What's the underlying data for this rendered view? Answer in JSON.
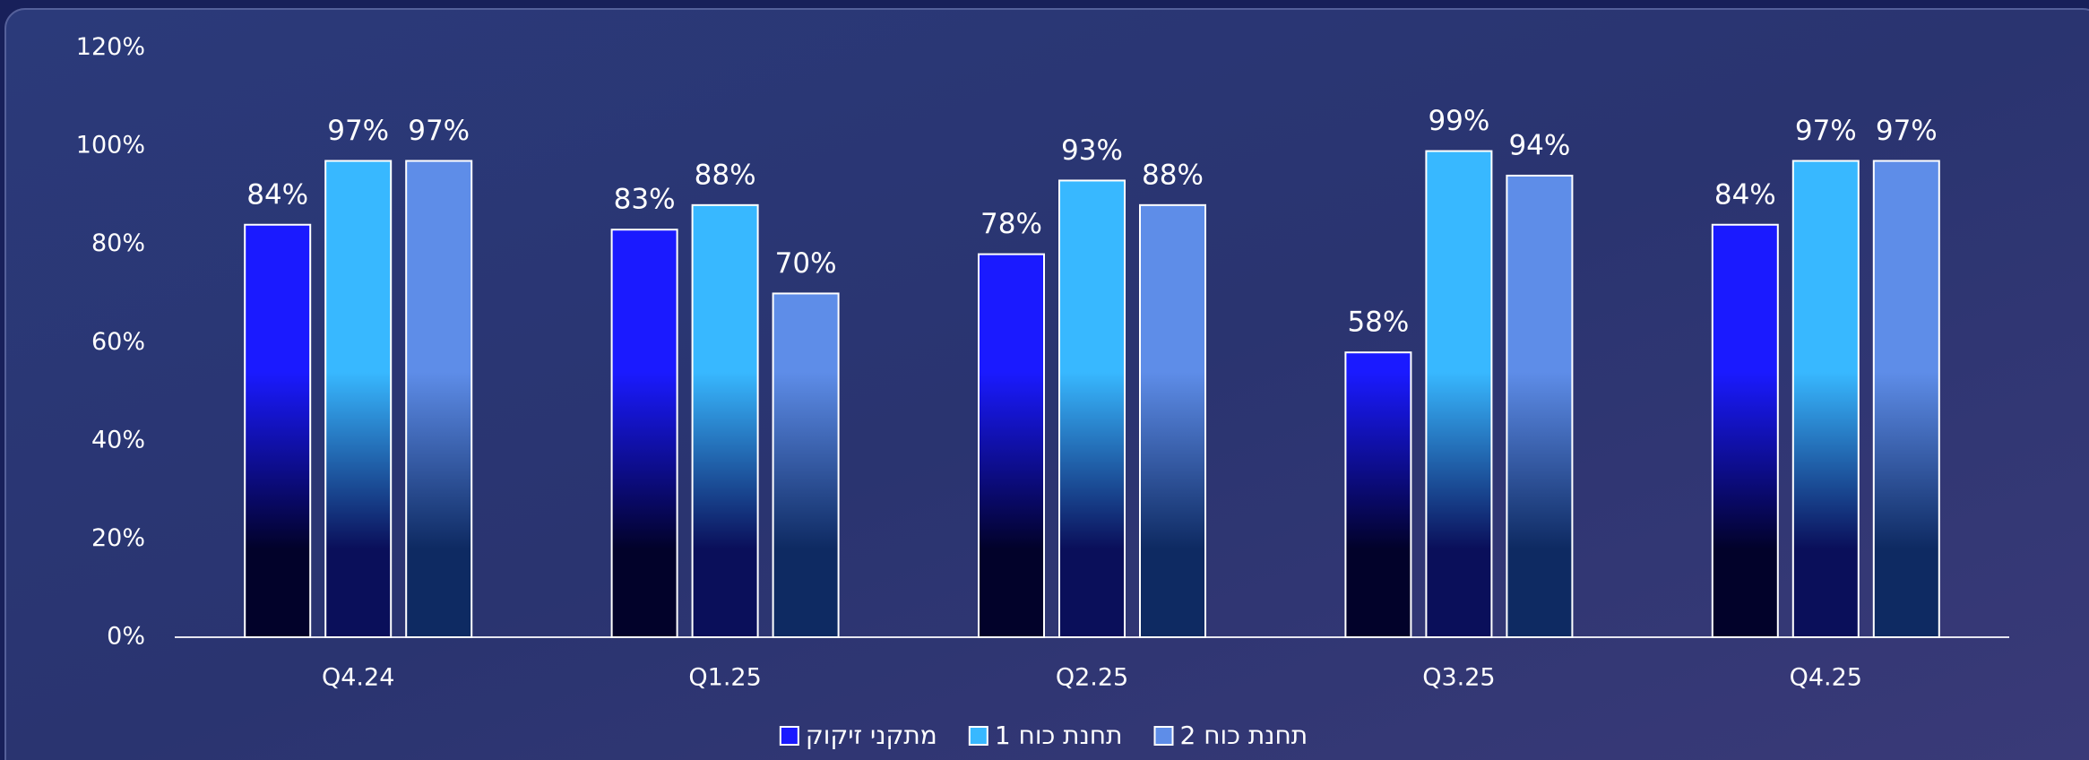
{
  "chart_data": {
    "type": "bar",
    "categories": [
      "Q4.24",
      "Q1.25",
      "Q2.25",
      "Q3.25",
      "Q4.25"
    ],
    "series": [
      {
        "name": "מתקני זיקוק",
        "color": "#1a1aff",
        "values": [
          84,
          83,
          78,
          58,
          84
        ],
        "value_labels": [
          "84%",
          "83%",
          "78%",
          "58%",
          "84%"
        ]
      },
      {
        "name": "תחנת כוח 1",
        "color": "#38b8ff",
        "values": [
          97,
          88,
          93,
          99,
          97
        ],
        "value_labels": [
          "97%",
          "88%",
          "93%",
          "99%",
          "97%"
        ]
      },
      {
        "name": "תחנת כוח 2",
        "color": "#5e8de8",
        "values": [
          97,
          70,
          88,
          94,
          97
        ],
        "value_labels": [
          "97%",
          "70%",
          "88%",
          "94%",
          "97%"
        ]
      }
    ],
    "ylim": [
      0,
      120
    ],
    "yticks": [
      {
        "value": 0,
        "label": "0%"
      },
      {
        "value": 20,
        "label": "20%"
      },
      {
        "value": 40,
        "label": "40%"
      },
      {
        "value": 60,
        "label": "60%"
      },
      {
        "value": 80,
        "label": "80%"
      },
      {
        "value": 100,
        "label": "100%"
      },
      {
        "value": 120,
        "label": "120%"
      }
    ],
    "grid": false,
    "legend": "bottom"
  }
}
